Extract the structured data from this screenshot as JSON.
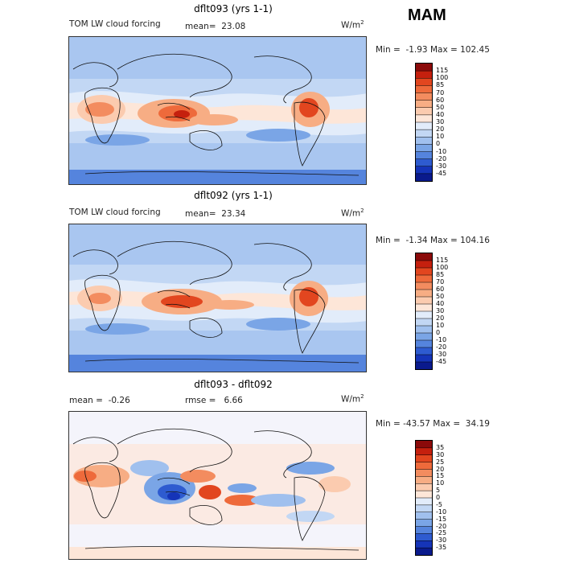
{
  "season": "MAM",
  "panels": [
    {
      "title": "dflt093 (yrs 1-1)",
      "field_label": "TOM LW cloud forcing",
      "mean_text": "mean=  23.08",
      "units": "W/m",
      "units_exp": "2",
      "minmax": "Min =  -1.93 Max = 102.45"
    },
    {
      "title": "dflt092 (yrs 1-1)",
      "field_label": "TOM LW cloud forcing",
      "mean_text": "mean=  23.34",
      "units": "W/m",
      "units_exp": "2",
      "minmax": "Min =  -1.34 Max = 104.16"
    },
    {
      "title": "dflt093 - dflt092",
      "mean_text": "mean =  -0.26",
      "rmse_text": "rmse =   6.66",
      "units": "W/m",
      "units_exp": "2",
      "minmax": "Min = -43.57 Max =  34.19"
    }
  ],
  "colorbars": {
    "field": {
      "levels": [
        "115",
        "100",
        "85",
        "70",
        "60",
        "50",
        "40",
        "30",
        "20",
        "10",
        "0",
        "-10",
        "-20",
        "-30",
        "-45"
      ],
      "colors": [
        "#8b0a0a",
        "#c5200e",
        "#e2461f",
        "#ee6a3b",
        "#f38c5f",
        "#f7ad84",
        "#fbcbaf",
        "#fde6d8",
        "#e2ecfa",
        "#c2d7f4",
        "#a0c0ee",
        "#7aa5e6",
        "#5584dd",
        "#2e5bd0",
        "#1534b8",
        "#0a1a8c"
      ]
    },
    "diff": {
      "levels": [
        "35",
        "30",
        "25",
        "20",
        "15",
        "10",
        "5",
        "0",
        "-5",
        "-10",
        "-15",
        "-20",
        "-25",
        "-30",
        "-35"
      ],
      "colors": [
        "#8b0a0a",
        "#c5200e",
        "#e2461f",
        "#ee6a3b",
        "#f38c5f",
        "#f7ad84",
        "#fbcbaf",
        "#fde6d8",
        "#e2ecfa",
        "#c2d7f4",
        "#a0c0ee",
        "#7aa5e6",
        "#5584dd",
        "#2e5bd0",
        "#1534b8",
        "#0a1a8c"
      ]
    }
  },
  "maps": {
    "field_bg": "#a9c6f0",
    "diff_bg": "#f4f4fb"
  }
}
